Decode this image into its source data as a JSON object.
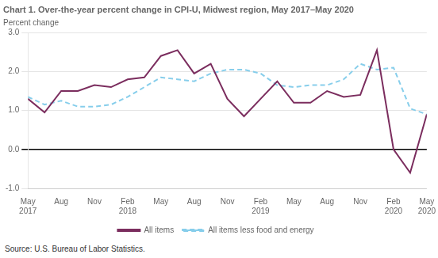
{
  "chart_data": {
    "type": "line",
    "title": "Chart 1. Over-the-year percent change in CPI-U, Midwest region, May 2017–May 2020",
    "ylabel": "Percent change",
    "annotations": [
      "Source: U.S. Bureau of Labor Statistics."
    ],
    "x": [
      0,
      1.5,
      3,
      4.5,
      6,
      7.5,
      9,
      10.5,
      12,
      13.5,
      15,
      16.5,
      18,
      19.5,
      21,
      22.5,
      24,
      25.5,
      27,
      28.5,
      30,
      31.5,
      33,
      34.5,
      36
    ],
    "series": [
      {
        "name": "All items",
        "color": "#7B2D5E",
        "line_style": "solid",
        "values": [
          1.3,
          0.95,
          1.5,
          1.5,
          1.65,
          1.6,
          1.8,
          1.85,
          2.4,
          2.55,
          1.95,
          2.2,
          1.3,
          0.85,
          1.3,
          1.75,
          1.2,
          1.2,
          1.5,
          1.35,
          1.4,
          2.55,
          0.0,
          -0.6,
          0.9
        ]
      },
      {
        "name": "All items less food and energy",
        "color": "#87CEEB",
        "line_style": "dashed",
        "values": [
          1.35,
          1.15,
          1.25,
          1.1,
          1.1,
          1.15,
          1.35,
          1.6,
          1.85,
          1.8,
          1.75,
          1.95,
          2.05,
          2.05,
          1.95,
          1.65,
          1.6,
          1.65,
          1.65,
          1.8,
          2.2,
          2.05,
          2.1,
          1.05,
          0.9
        ]
      }
    ],
    "xlim": [
      0,
      36
    ],
    "xticks": [
      {
        "value": 0,
        "label": "May\n2017"
      },
      {
        "value": 3,
        "label": "Aug"
      },
      {
        "value": 6,
        "label": "Nov"
      },
      {
        "value": 9,
        "label": "Feb\n2018"
      },
      {
        "value": 12,
        "label": "May"
      },
      {
        "value": 15,
        "label": "Aug"
      },
      {
        "value": 18,
        "label": "Nov"
      },
      {
        "value": 21,
        "label": "Feb\n2019"
      },
      {
        "value": 24,
        "label": "May"
      },
      {
        "value": 27,
        "label": "Aug"
      },
      {
        "value": 30,
        "label": "Nov"
      },
      {
        "value": 33,
        "label": "Feb\n2020"
      },
      {
        "value": 36,
        "label": "May\n2020"
      }
    ],
    "ylim": [
      -1.0,
      3.0
    ],
    "yticks": [
      {
        "value": -1.0,
        "label": "-1.0"
      },
      {
        "value": 0.0,
        "label": "0.0"
      },
      {
        "value": 1.0,
        "label": "1.0"
      },
      {
        "value": 2.0,
        "label": "2.0"
      },
      {
        "value": 3.0,
        "label": "3.0"
      }
    ],
    "grid": true,
    "legend": "bottom"
  }
}
